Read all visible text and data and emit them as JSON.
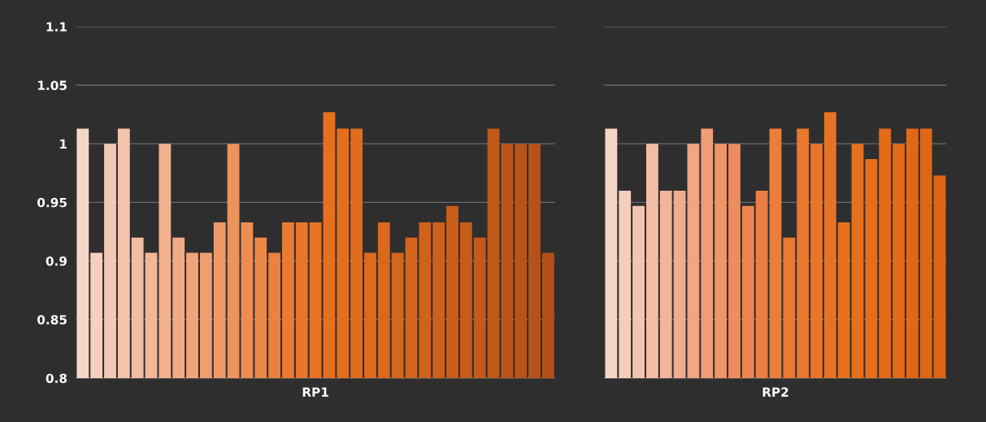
{
  "chart_data": [
    {
      "type": "bar",
      "xlabel": "RP1",
      "ylim": [
        0.8,
        1.1
      ],
      "yticks": [
        0.8,
        0.85,
        0.9,
        0.95,
        1,
        1.05,
        1.1
      ],
      "grid": "y",
      "tick_labels": "y",
      "categories": [
        null,
        null,
        null,
        null,
        null,
        null,
        null,
        null,
        null,
        null,
        null,
        null,
        null,
        null,
        null,
        null,
        null,
        null,
        null,
        null,
        null,
        null,
        null,
        null,
        null,
        null,
        null,
        null,
        null,
        null,
        null,
        null,
        null,
        null,
        null
      ],
      "values": [
        1.013,
        0.907,
        1.0,
        1.013,
        0.92,
        0.907,
        1.0,
        0.92,
        0.907,
        0.907,
        0.933,
        1.0,
        0.933,
        0.92,
        0.907,
        0.933,
        0.933,
        0.933,
        1.027,
        1.013,
        1.013,
        0.907,
        0.933,
        0.907,
        0.92,
        0.933,
        0.933,
        0.947,
        0.933,
        0.92,
        1.013,
        1.0,
        1.0,
        1.0,
        0.907
      ],
      "colors": [
        "#f6d5c9",
        "#f5cfc0",
        "#f4c9b6",
        "#f3c3ac",
        "#f2bda2",
        "#f2b798",
        "#f1b18e",
        "#f0ab84",
        "#efa57a",
        "#ee9f70",
        "#ee9966",
        "#ed935c",
        "#ec8d52",
        "#eb8748",
        "#ea813e",
        "#ea7b34",
        "#e9762a",
        "#e87224",
        "#e7701f",
        "#e46e1e",
        "#e06c1e",
        "#dd6a1d",
        "#da681d",
        "#d6661c",
        "#d3641c",
        "#d0621b",
        "#cd601b",
        "#c95e1a",
        "#c65c1a",
        "#c35a19",
        "#c05819",
        "#bc5618",
        "#b95418",
        "#b65217",
        "#b35017"
      ]
    },
    {
      "type": "bar",
      "xlabel": "RP2",
      "ylim": [
        0.8,
        1.1
      ],
      "yticks": [
        0.8,
        0.85,
        0.9,
        0.95,
        1,
        1.05,
        1.1
      ],
      "grid": "y",
      "tick_labels": false,
      "categories": [
        null,
        null,
        null,
        null,
        null,
        null,
        null,
        null,
        null,
        null,
        null,
        null,
        null,
        null,
        null,
        null,
        null,
        null,
        null,
        null,
        null,
        null,
        null,
        null,
        null
      ],
      "values": [
        1.013,
        0.96,
        0.947,
        1.0,
        0.96,
        0.96,
        1.0,
        1.013,
        1.0,
        1.0,
        0.947,
        0.96,
        1.013,
        0.92,
        1.013,
        1.0,
        1.027,
        0.933,
        1.0,
        0.987,
        1.013,
        1.0,
        1.013,
        1.013,
        0.973
      ],
      "colors": [
        "#f6d5c9",
        "#f5cdbd",
        "#f4c5b1",
        "#f3bda5",
        "#f2b599",
        "#f1ad8d",
        "#f0a581",
        "#ef9d75",
        "#ee9569",
        "#ed8d5d",
        "#ec8551",
        "#eb7d45",
        "#ea7d3c",
        "#e97a34",
        "#e8782e",
        "#e87628",
        "#e77423",
        "#e6721f",
        "#e5701d",
        "#e46e1b",
        "#e36c1a",
        "#e26a19",
        "#e16818",
        "#e06617",
        "#df6416"
      ]
    }
  ]
}
